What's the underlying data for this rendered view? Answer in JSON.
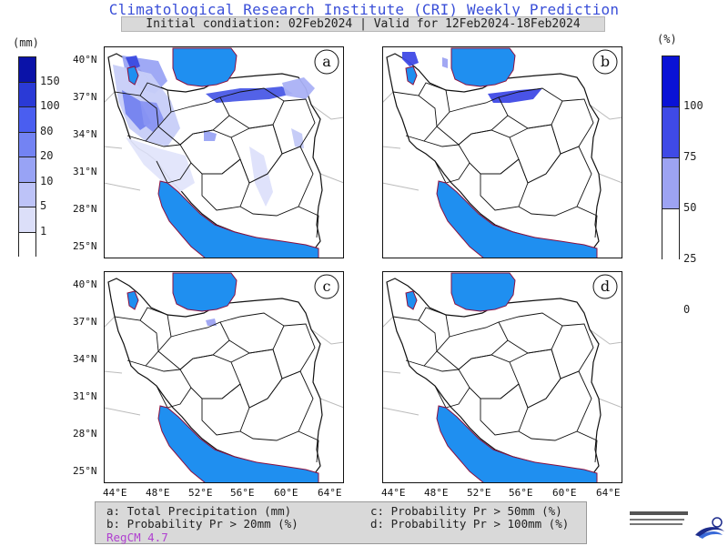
{
  "header": {
    "title": "Climatological Research Institute (CRI) Weekly Prediction",
    "subtitle": "Initial condiation: 02Feb2024 | Valid for 12Feb2024-18Feb2024"
  },
  "colorbar_left": {
    "unit": "(mm)",
    "labels": [
      "150",
      "100",
      "80",
      "20",
      "10",
      "5",
      "1"
    ],
    "colors": [
      "#0a12a8",
      "#2a3ad6",
      "#4a5ef0",
      "#7383f3",
      "#98a3f5",
      "#bdc3f8",
      "#dcdff9",
      "#ffffff"
    ]
  },
  "colorbar_right": {
    "unit": "(%)",
    "labels": [
      "100",
      "75",
      "50",
      "25",
      "0"
    ],
    "colors": [
      "#0a12d6",
      "#3f4ae6",
      "#9da3f2",
      "#ffffff"
    ]
  },
  "axes": {
    "lat_labels": [
      "40°N",
      "37°N",
      "34°N",
      "31°N",
      "28°N",
      "25°N"
    ],
    "lon_labels": [
      "44°E",
      "48°E",
      "52°E",
      "56°E",
      "60°E",
      "64°E"
    ]
  },
  "panels": [
    {
      "letter": "a",
      "description": "Total Precipitation"
    },
    {
      "letter": "b",
      "description": "Probability Pr > 20mm"
    },
    {
      "letter": "c",
      "description": "Probability Pr > 50mm"
    },
    {
      "letter": "d",
      "description": "Probability Pr > 100mm"
    }
  ],
  "legend": {
    "a": "a: Total Precipitation (mm)",
    "b": "b: Probability Pr > 20mm (%)",
    "c": "c: Probability Pr > 50mm (%)",
    "d": "d: Probability Pr > 100mm (%)",
    "model": "RegCM 4.7"
  },
  "colors": {
    "title": "#3a4fd8",
    "sea": "#1f8ff0",
    "border": "#111111",
    "coast": "#8a1040",
    "model_label": "#b040d0"
  }
}
